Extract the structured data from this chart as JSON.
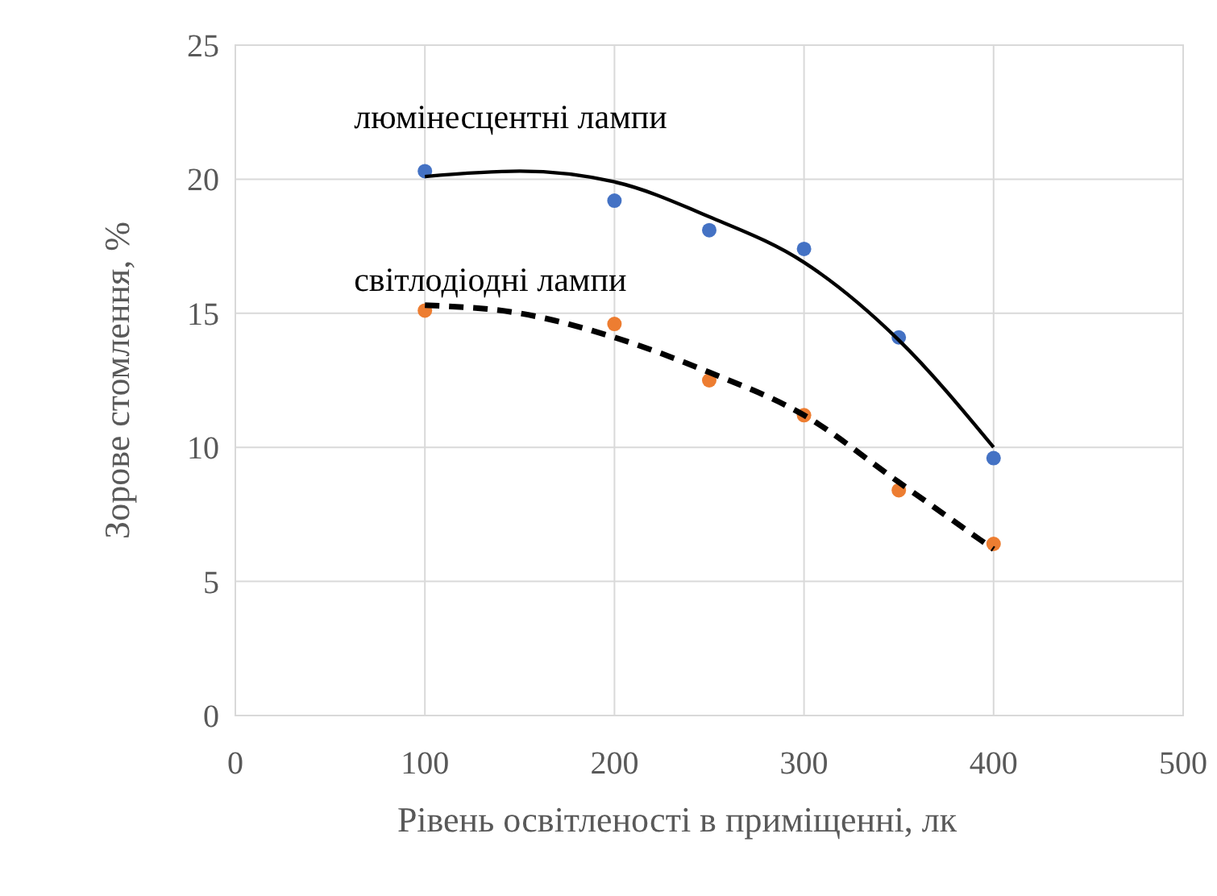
{
  "chart_data": {
    "type": "scatter",
    "xlabel": "Рівень освітленості в приміщенні, лк",
    "ylabel": "Зорове стомлення, %",
    "xlim": [
      0,
      500
    ],
    "xticks": [
      0,
      100,
      200,
      300,
      400,
      500
    ],
    "ylim": [
      0,
      25
    ],
    "yticks": [
      0,
      5,
      10,
      15,
      20,
      25
    ],
    "grid": true,
    "marker": "circle",
    "series": [
      {
        "color": "#4472c4",
        "x": [
          100,
          200,
          250,
          300,
          350,
          400
        ],
        "values": [
          20.3,
          19.2,
          18.1,
          17.4,
          14.1,
          9.6
        ]
      },
      {
        "color": "#ed7d31",
        "x": [
          100,
          200,
          250,
          300,
          350,
          400
        ],
        "values": [
          15.1,
          14.6,
          12.5,
          11.2,
          8.4,
          6.4
        ]
      },
      {
        "type": "line",
        "name": "люмінесцентні лампи",
        "color": "#000000",
        "marker": "none",
        "line_style": "solid",
        "x": [
          100,
          150,
          200,
          250,
          300,
          350,
          400
        ],
        "values": [
          20.1,
          20.3,
          19.9,
          18.6,
          16.9,
          14.0,
          10.0
        ]
      },
      {
        "type": "line",
        "name": "світлодіодні лампи",
        "color": "#000000",
        "marker": "none",
        "line_style": "dashed",
        "x": [
          100,
          150,
          200,
          250,
          300,
          350,
          400
        ],
        "values": [
          15.3,
          15.0,
          14.1,
          12.8,
          11.2,
          8.7,
          6.2
        ]
      }
    ]
  }
}
